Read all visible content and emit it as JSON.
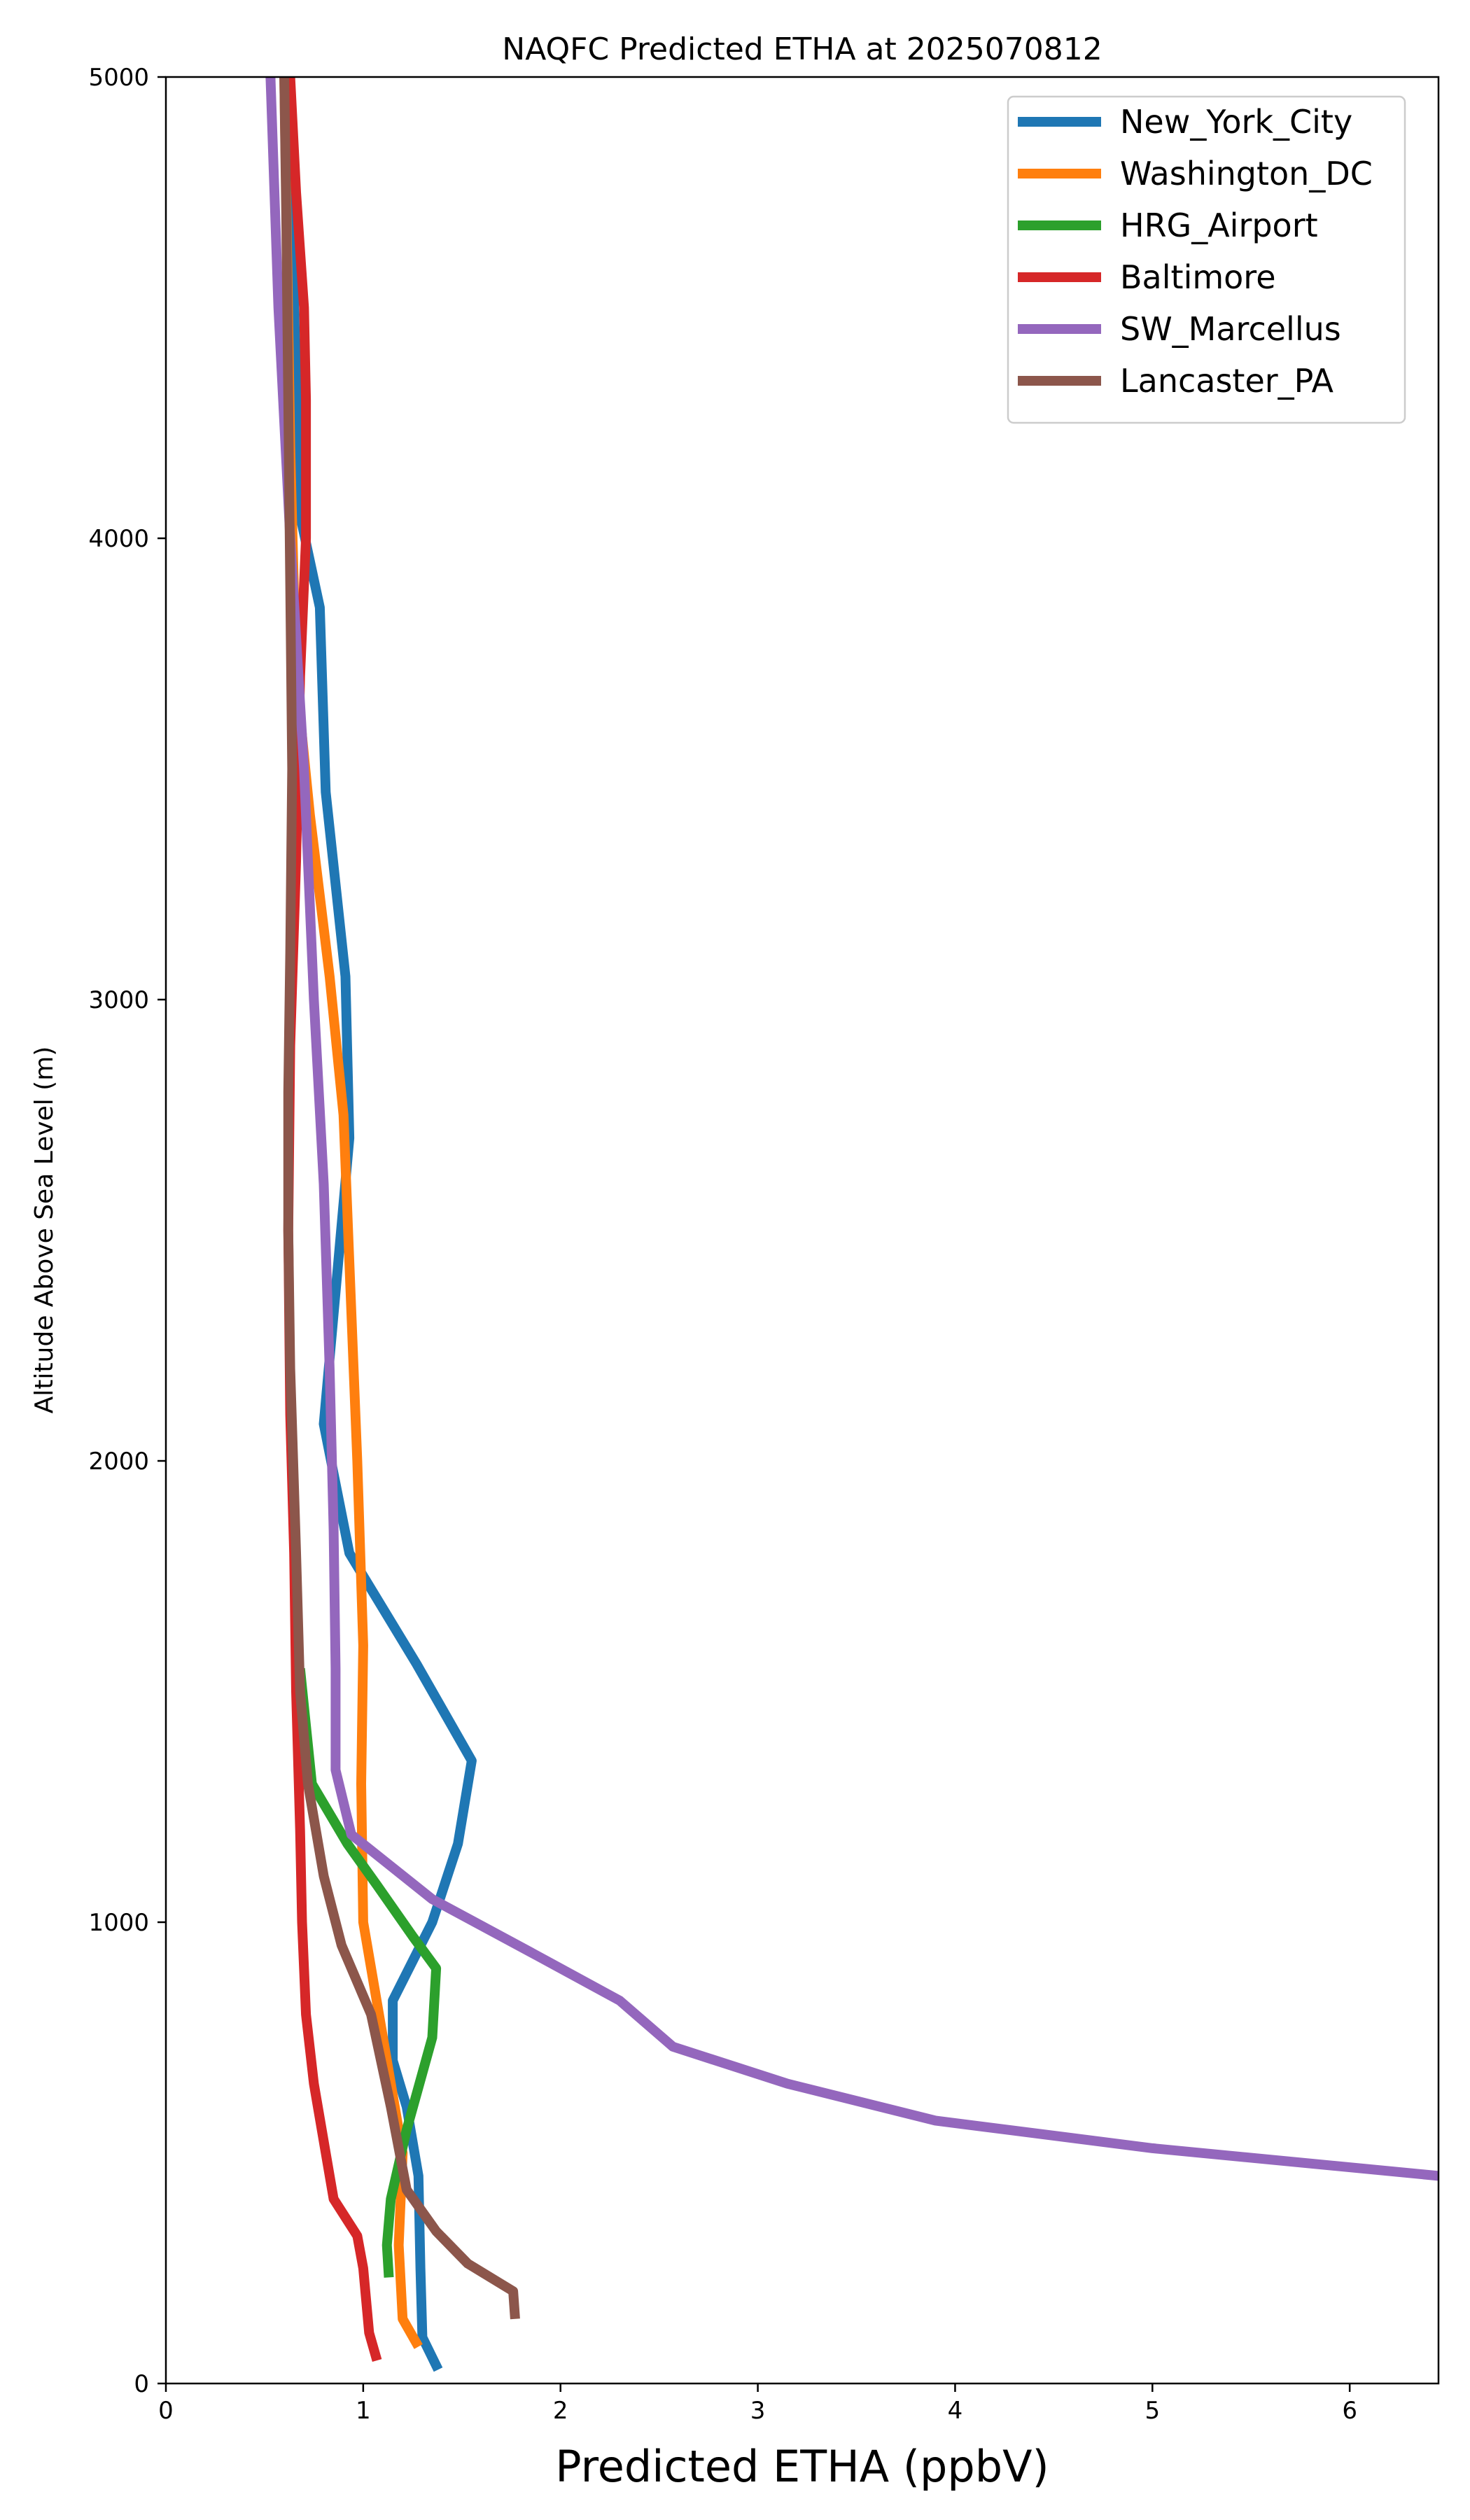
{
  "chart_data": {
    "type": "line",
    "title": "NAQFC Predicted ETHA at 2025070812",
    "xlabel": "Predicted ETHA (ppbV)",
    "ylabel": "Altitude Above Sea Level (m)",
    "xlim": [
      0,
      6.45
    ],
    "ylim": [
      0,
      5000
    ],
    "x_ticks": [
      0,
      1,
      2,
      3,
      4,
      5,
      6
    ],
    "y_ticks": [
      0,
      1000,
      2000,
      3000,
      4000,
      5000
    ],
    "grid": false,
    "legend_position": "top-right",
    "series": [
      {
        "name": "New_York_City",
        "color": "#1f77b4",
        "points": [
          [
            1.38,
            30
          ],
          [
            1.3,
            100
          ],
          [
            1.29,
            250
          ],
          [
            1.28,
            450
          ],
          [
            1.22,
            600
          ],
          [
            1.15,
            700
          ],
          [
            1.15,
            830
          ],
          [
            1.35,
            1000
          ],
          [
            1.48,
            1170
          ],
          [
            1.55,
            1350
          ],
          [
            1.27,
            1560
          ],
          [
            0.93,
            1800
          ],
          [
            0.8,
            2080
          ],
          [
            0.93,
            2700
          ],
          [
            0.91,
            3050
          ],
          [
            0.81,
            3450
          ],
          [
            0.78,
            3850
          ],
          [
            0.68,
            4050
          ],
          [
            0.65,
            4500
          ],
          [
            0.62,
            5000
          ]
        ]
      },
      {
        "name": "Washington_DC",
        "color": "#ff7f0e",
        "points": [
          [
            1.28,
            80
          ],
          [
            1.2,
            140
          ],
          [
            1.18,
            300
          ],
          [
            1.2,
            500
          ],
          [
            1.12,
            700
          ],
          [
            1.0,
            1000
          ],
          [
            0.99,
            1300
          ],
          [
            1.0,
            1600
          ],
          [
            0.97,
            2000
          ],
          [
            0.9,
            2750
          ],
          [
            0.83,
            3050
          ],
          [
            0.73,
            3400
          ],
          [
            0.66,
            3700
          ],
          [
            0.63,
            4200
          ],
          [
            0.6,
            5000
          ]
        ]
      },
      {
        "name": "HRG_Airport",
        "color": "#2ca02c",
        "points": [
          [
            1.13,
            230
          ],
          [
            1.12,
            300
          ],
          [
            1.14,
            400
          ],
          [
            1.22,
            550
          ],
          [
            1.35,
            750
          ],
          [
            1.37,
            900
          ],
          [
            1.25,
            970
          ],
          [
            1.07,
            1080
          ],
          [
            0.92,
            1170
          ],
          [
            0.74,
            1300
          ],
          [
            0.68,
            1550
          ]
        ]
      },
      {
        "name": "Baltimore",
        "color": "#d62728",
        "points": [
          [
            1.07,
            50
          ],
          [
            1.03,
            110
          ],
          [
            1.0,
            250
          ],
          [
            0.97,
            320
          ],
          [
            0.85,
            400
          ],
          [
            0.81,
            500
          ],
          [
            0.75,
            650
          ],
          [
            0.71,
            800
          ],
          [
            0.69,
            1000
          ],
          [
            0.68,
            1200
          ],
          [
            0.66,
            1500
          ],
          [
            0.65,
            1800
          ],
          [
            0.63,
            2100
          ],
          [
            0.62,
            2500
          ],
          [
            0.63,
            2900
          ],
          [
            0.66,
            3300
          ],
          [
            0.68,
            3700
          ],
          [
            0.71,
            4000
          ],
          [
            0.71,
            4300
          ],
          [
            0.7,
            4500
          ],
          [
            0.66,
            4750
          ],
          [
            0.63,
            5000
          ]
        ]
      },
      {
        "name": "SW_Marcellus",
        "color": "#9467bd",
        "points": [
          [
            6.45,
            450
          ],
          [
            5.0,
            510
          ],
          [
            3.9,
            570
          ],
          [
            3.15,
            650
          ],
          [
            2.57,
            730
          ],
          [
            2.3,
            830
          ],
          [
            1.87,
            930
          ],
          [
            1.35,
            1050
          ],
          [
            0.94,
            1190
          ],
          [
            0.86,
            1330
          ],
          [
            0.86,
            1550
          ],
          [
            0.85,
            1850
          ],
          [
            0.83,
            2200
          ],
          [
            0.8,
            2600
          ],
          [
            0.75,
            3000
          ],
          [
            0.7,
            3500
          ],
          [
            0.63,
            4000
          ],
          [
            0.57,
            4500
          ],
          [
            0.53,
            5000
          ]
        ]
      },
      {
        "name": "Lancaster_PA",
        "color": "#8c564b",
        "points": [
          [
            1.77,
            140
          ],
          [
            1.76,
            200
          ],
          [
            1.53,
            260
          ],
          [
            1.37,
            330
          ],
          [
            1.22,
            420
          ],
          [
            1.14,
            600
          ],
          [
            1.04,
            800
          ],
          [
            0.89,
            950
          ],
          [
            0.8,
            1100
          ],
          [
            0.72,
            1300
          ],
          [
            0.68,
            1500
          ],
          [
            0.66,
            1800
          ],
          [
            0.63,
            2200
          ],
          [
            0.62,
            2500
          ],
          [
            0.62,
            2800
          ],
          [
            0.63,
            3100
          ],
          [
            0.64,
            3500
          ],
          [
            0.63,
            3900
          ],
          [
            0.62,
            4300
          ],
          [
            0.61,
            4700
          ],
          [
            0.6,
            5000
          ]
        ]
      }
    ]
  }
}
